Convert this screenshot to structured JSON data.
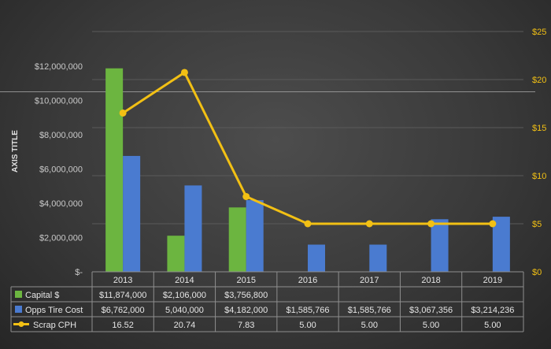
{
  "chart_data": {
    "type": "bar",
    "categories": [
      "2013",
      "2014",
      "2015",
      "2016",
      "2017",
      "2018",
      "2019"
    ],
    "series": [
      {
        "name": "Capital $",
        "kind": "bar",
        "axis": "left",
        "color": "#6cb540",
        "values": [
          11874000,
          2106000,
          3756800,
          null,
          null,
          null,
          null
        ],
        "labels": [
          "$11,874,000",
          "$2,106,000",
          "$3,756,800",
          "",
          "",
          "",
          ""
        ]
      },
      {
        "name": "Opps Tire Cost",
        "kind": "bar",
        "axis": "left",
        "color": "#4a7bd0",
        "values": [
          6762000,
          5040000,
          4182000,
          1585766,
          1585766,
          3067356,
          3214236
        ],
        "labels": [
          "$6,762,000",
          "5,040,000",
          "$4,182,000",
          "$1,585,766",
          "$1,585,766",
          "$3,067,356",
          "$3,214,236"
        ]
      },
      {
        "name": "Scrap CPH",
        "kind": "line",
        "axis": "right",
        "color": "#f2c014",
        "values": [
          16.52,
          20.74,
          7.83,
          5.0,
          5.0,
          5.0,
          5.0
        ],
        "labels": [
          "16.52",
          "20.74",
          "7.83",
          "5.00",
          "5.00",
          "5.00",
          "5.00"
        ]
      }
    ],
    "ylabel": "AXIS TITLE",
    "ylim": [
      0,
      12000000
    ],
    "y_ticks": [
      0,
      2000000,
      4000000,
      6000000,
      8000000,
      10000000,
      12000000
    ],
    "y_tick_labels": [
      "$-",
      "$2,000,000",
      "$4,000,000",
      "$6,000,000",
      "$8,000,000",
      "$10,000,000",
      "$12,000,000"
    ],
    "y2lim": [
      0,
      25
    ],
    "y2_ticks": [
      0,
      5,
      10,
      15,
      20,
      25
    ],
    "y2_tick_labels": [
      "$0",
      "$5",
      "$10",
      "$15",
      "$20",
      "$25"
    ],
    "data_table": true,
    "grid": true
  }
}
